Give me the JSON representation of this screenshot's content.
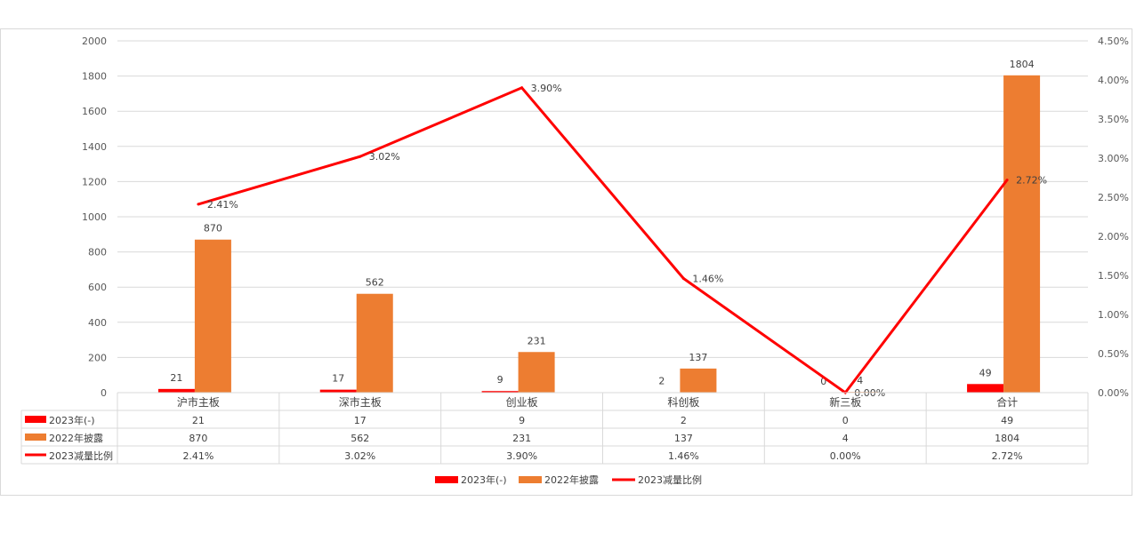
{
  "chart_data": {
    "type": "bar",
    "categories": [
      "沪市主板",
      "深市主板",
      "创业板",
      "科创板",
      "新三板",
      "合计"
    ],
    "series": [
      {
        "name": "2023年(-)",
        "kind": "bar",
        "axis": "left",
        "color": "#ff0000",
        "values": [
          21,
          17,
          9,
          2,
          0,
          49
        ]
      },
      {
        "name": "2022年披露",
        "kind": "bar",
        "axis": "left",
        "color": "#ed7d31",
        "values": [
          870,
          562,
          231,
          137,
          4,
          1804
        ]
      },
      {
        "name": "2023减量比例",
        "kind": "line",
        "axis": "right",
        "color": "#ff0000",
        "values": [
          2.41,
          3.02,
          3.9,
          1.46,
          0.0,
          2.72
        ]
      }
    ],
    "table": {
      "rows": [
        [
          "21",
          "17",
          "9",
          "2",
          "0",
          "49"
        ],
        [
          "870",
          "562",
          "231",
          "137",
          "4",
          "1804"
        ],
        [
          "2.41%",
          "3.02%",
          "3.90%",
          "1.46%",
          "0.00%",
          "2.72%"
        ]
      ]
    },
    "left_axis": {
      "min": 0,
      "max": 2000,
      "step": 200,
      "ticks": [
        "0",
        "200",
        "400",
        "600",
        "800",
        "1000",
        "1200",
        "1400",
        "1600",
        "1800",
        "2000"
      ]
    },
    "right_axis": {
      "min": 0,
      "max": 4.5,
      "step": 0.5,
      "ticks": [
        "0.00%",
        "0.50%",
        "1.00%",
        "1.50%",
        "2.00%",
        "2.50%",
        "3.00%",
        "3.50%",
        "4.00%",
        "4.50%"
      ]
    },
    "grid": true,
    "legend_position": "bottom"
  }
}
